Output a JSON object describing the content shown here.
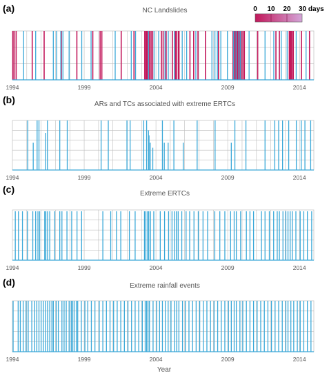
{
  "x_axis_label": "Year",
  "legend": {
    "tick_labels": [
      "0",
      "10",
      "20",
      "30 days"
    ],
    "gradient_colors": [
      "#c2185b",
      "#d4a6d9"
    ]
  },
  "colors": {
    "blue": "#3aa8d8",
    "magenta": "#c2185b",
    "grid": "#bdbdbd",
    "axis": "#8c8c8c"
  },
  "chart_data": [
    {
      "type": "bar",
      "panel_label": "(a)",
      "title": "NC Landslides",
      "xlim": [
        1994,
        2015
      ],
      "x_ticks": [
        "1994",
        "1999",
        "2004",
        "2009",
        "2014"
      ],
      "grid": true,
      "series": [
        {
          "color": "#c2185b",
          "x": [
            1994.03,
            1994.12,
            1994.26,
            1995.38,
            1996.21,
            1997.41,
            1998.49,
            1999.6,
            2000.11,
            2000.23,
            2001.58,
            2002.47,
            2003.22,
            2003.3,
            2003.35,
            2003.42,
            2003.55,
            2003.66,
            2003.77,
            2004.38,
            2004.5,
            2004.71,
            2005.14,
            2005.36,
            2005.43,
            2005.56,
            2005.61,
            2006.37,
            2006.63,
            2006.93,
            2007.45,
            2008.36,
            2009.37,
            2009.45,
            2009.53,
            2009.62,
            2009.7,
            2009.81,
            2009.94,
            2010.06,
            2010.16,
            2011.09,
            2012.36,
            2012.6,
            2013.29,
            2013.35,
            2013.41,
            2013.48,
            2013.57,
            2014.14,
            2014.7
          ]
        },
        {
          "color": "#3aa8d8",
          "x": [
            1994.78,
            1995.62,
            1996.85,
            1997.08,
            1997.37,
            1997.52,
            1997.95,
            1998.83,
            1999.48,
            2001.16,
            2002.28,
            2002.58,
            2003.48,
            2003.87,
            2004.19,
            2004.63,
            2004.86,
            2005.28,
            2005.83,
            2006.14,
            2006.78,
            2007.9,
            2008.11,
            2008.28,
            2008.52,
            2008.98,
            2009.41,
            2009.58,
            2009.77,
            2009.88,
            2010.49,
            2011.6,
            2012.21,
            2012.73,
            2013.14,
            2013.77,
            2014.46
          ]
        }
      ]
    },
    {
      "type": "bar",
      "panel_label": "(b)",
      "title": "ARs and TCs associated with extreme ERTCs",
      "xlim": [
        1994,
        2015
      ],
      "x_ticks": [
        "1994",
        "1999",
        "2004",
        "2009",
        "2014"
      ],
      "grid": true,
      "series": [
        {
          "color": "#3aa8d8",
          "x": [
            1995.07,
            1995.45,
            1995.72,
            1995.85,
            1996.31,
            1996.44,
            1997.3,
            1997.82,
            2000.18,
            2000.68,
            2001.98,
            2002.2,
            2003.15,
            2003.35,
            2003.48,
            2003.52,
            2003.6,
            2003.78,
            2004.45,
            2004.58,
            2004.85,
            2005.25,
            2005.9,
            2006.87,
            2008.12,
            2009.25,
            2009.5,
            2010.27,
            2011.6,
            2012.28,
            2012.55,
            2012.82,
            2013.25,
            2013.78,
            2014.12,
            2014.38,
            2014.78
          ],
          "heights": [
            1,
            0.55,
            1,
            1,
            0.75,
            1,
            1,
            1,
            1,
            1,
            1,
            1,
            1,
            1,
            0.8,
            0.7,
            0.55,
            0.45,
            1,
            0.55,
            0.55,
            1,
            0.55,
            1,
            1,
            0.55,
            1,
            1,
            1,
            1,
            1,
            1,
            1,
            1,
            1,
            1,
            1
          ]
        }
      ]
    },
    {
      "type": "bar",
      "panel_label": "(c)",
      "title": "Extreme ERTCs",
      "xlim": [
        1994,
        2015
      ],
      "x_ticks": [
        "1994",
        "1999",
        "2004",
        "2009",
        "2014"
      ],
      "grid": true,
      "series": [
        {
          "color": "#3aa8d8",
          "x": [
            1994.2,
            1994.42,
            1994.7,
            1995.05,
            1995.42,
            1995.62,
            1995.78,
            1995.9,
            1996.25,
            1996.33,
            1996.45,
            1996.6,
            1996.95,
            1997.3,
            1997.45,
            1997.8,
            1998.13,
            1998.5,
            1998.82,
            2000.3,
            2000.85,
            2001.25,
            2001.55,
            2002.15,
            2002.55,
            2003.2,
            2003.3,
            2003.42,
            2003.5,
            2003.62,
            2003.85,
            2004.3,
            2004.6,
            2004.88,
            2005.12,
            2005.3,
            2005.42,
            2005.55,
            2005.8,
            2006.1,
            2006.35,
            2006.65,
            2006.95,
            2007.28,
            2007.6,
            2008.1,
            2008.45,
            2008.8,
            2009.2,
            2009.45,
            2009.6,
            2009.9,
            2010.3,
            2010.55,
            2010.8,
            2011.35,
            2011.6,
            2011.9,
            2012.2,
            2012.45,
            2012.6,
            2012.85,
            2013.05,
            2013.2,
            2013.35,
            2013.5,
            2013.75,
            2014.05,
            2014.3,
            2014.55,
            2014.85
          ]
        }
      ]
    },
    {
      "type": "bar",
      "panel_label": "(d)",
      "title": "Extreme rainfall events",
      "xlim": [
        1994,
        2015
      ],
      "x_ticks": [
        "1994",
        "1999",
        "2004",
        "2009",
        "2014"
      ],
      "grid": true,
      "series": [
        {
          "color": "#3aa8d8",
          "x": [
            1994.05,
            1994.4,
            1994.55,
            1994.75,
            1994.95,
            1995.1,
            1995.35,
            1995.55,
            1995.7,
            1995.85,
            1996.0,
            1996.15,
            1996.3,
            1996.45,
            1996.6,
            1996.75,
            1996.85,
            1997.05,
            1997.2,
            1997.45,
            1997.6,
            1997.75,
            1997.95,
            1998.1,
            1998.2,
            1998.3,
            1998.45,
            1998.55,
            1998.8,
            1999.05,
            1999.25,
            1999.5,
            1999.75,
            2000.05,
            2000.3,
            2000.55,
            2000.8,
            2001.05,
            2001.3,
            2001.55,
            2001.8,
            2002.05,
            2002.3,
            2002.55,
            2002.8,
            2003.05,
            2003.25,
            2003.35,
            2003.45,
            2003.55,
            2003.8,
            2004.05,
            2004.25,
            2004.45,
            2004.65,
            2004.85,
            2005.05,
            2005.3,
            2005.45,
            2005.6,
            2005.85,
            2006.05,
            2006.3,
            2006.55,
            2006.8,
            2007.05,
            2007.3,
            2007.55,
            2007.8,
            2008.05,
            2008.3,
            2008.55,
            2008.8,
            2009.05,
            2009.25,
            2009.45,
            2009.6,
            2009.85,
            2010.05,
            2010.3,
            2010.55,
            2010.8,
            2011.05,
            2011.3,
            2011.55,
            2011.8,
            2012.05,
            2012.3,
            2012.55,
            2012.8,
            2013.05,
            2013.2,
            2013.4,
            2013.6,
            2013.85,
            2014.05,
            2014.3,
            2014.55,
            2014.8
          ]
        }
      ]
    }
  ]
}
